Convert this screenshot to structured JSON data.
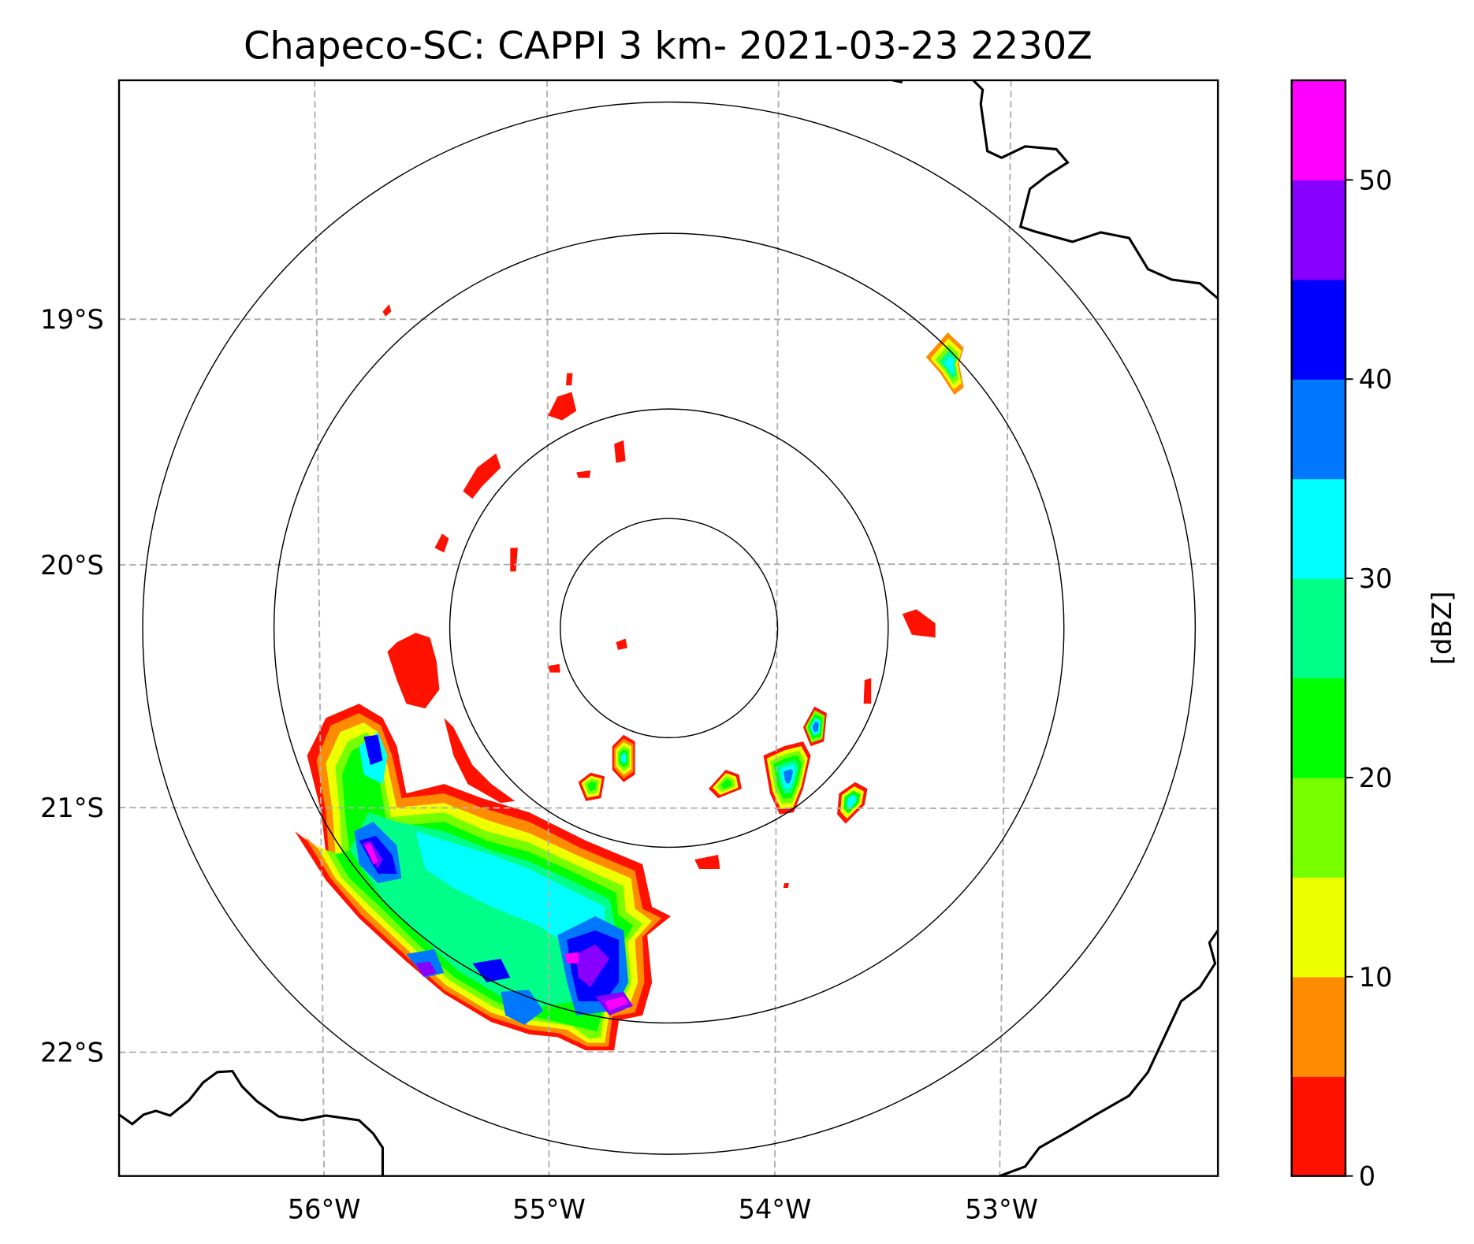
{
  "title": "Chapeco-SC: CAPPI 3 km- 2021-03-23 2230Z",
  "x_ticks": [
    "56°W",
    "55°W",
    "54°W",
    "53°W"
  ],
  "y_ticks": [
    "19°S",
    "20°S",
    "21°S",
    "22°S"
  ],
  "colorbar": {
    "label": "[dBZ]",
    "ticks": [
      "0",
      "10",
      "20",
      "30",
      "40",
      "50"
    ],
    "tick_values": [
      0,
      10,
      20,
      30,
      40,
      50
    ],
    "range": [
      0,
      55
    ],
    "bounds": [
      0,
      5,
      10,
      15,
      20,
      25,
      30,
      35,
      40,
      45,
      50,
      55
    ],
    "colors": [
      "#ff1100",
      "#ff8c00",
      "#eeff00",
      "#77ff00",
      "#00ff00",
      "#00ff88",
      "#00ffff",
      "#0077ff",
      "#0000ff",
      "#8800ff",
      "#ff00ff"
    ]
  },
  "range_rings_count": 4
}
